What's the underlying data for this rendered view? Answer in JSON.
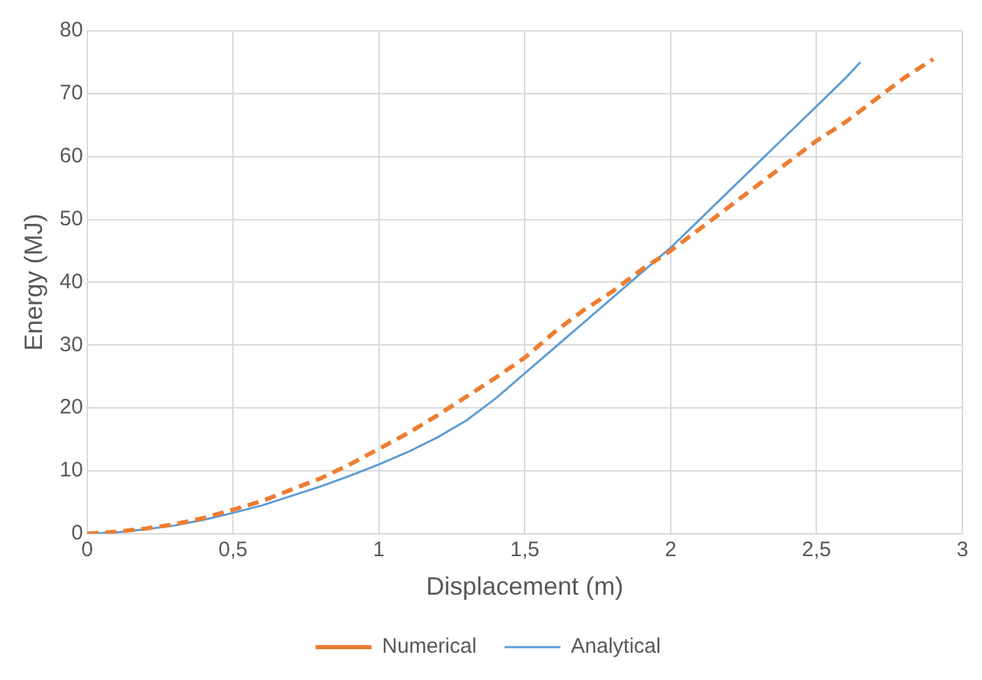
{
  "chart_data": {
    "type": "line",
    "xlabel": "Displacement (m)",
    "ylabel": "Energy (MJ)",
    "xlim": [
      0,
      3
    ],
    "xticks": [
      0,
      {
        "value": 0.5,
        "label": "0,5"
      },
      1,
      {
        "value": 1.5,
        "label": "1,5"
      },
      2,
      {
        "value": 2.5,
        "label": "2,5"
      },
      3
    ],
    "ylim": [
      0,
      80
    ],
    "yticks": [
      0,
      10,
      20,
      30,
      40,
      50,
      60,
      70,
      80
    ],
    "grid": true,
    "legend": "bottom",
    "marker": "none",
    "series": [
      {
        "name": "Numerical",
        "color": "#ed7d31",
        "line_style": "dashed",
        "x": [
          0,
          0.1,
          0.2,
          0.3,
          0.4,
          0.5,
          0.6,
          0.7,
          0.8,
          0.9,
          1,
          1.1,
          1.2,
          1.3,
          1.4,
          1.5,
          1.6,
          1.7,
          1.8,
          1.9,
          2,
          2.1,
          2.2,
          2.3,
          2.4,
          2.5,
          2.6,
          2.7,
          2.8,
          2.9
        ],
        "values": [
          0,
          0.3,
          0.8,
          1.5,
          2.5,
          3.8,
          5.2,
          7,
          8.8,
          11,
          13.5,
          16,
          18.8,
          21.8,
          24.8,
          28,
          32,
          35.5,
          38.5,
          42,
          45,
          48.5,
          52,
          55.5,
          59,
          62.5,
          65.5,
          69,
          72.5,
          75.5
        ]
      },
      {
        "name": "Analytical",
        "color": "#5b9bd5",
        "line_style": "solid",
        "x": [
          0,
          0.1,
          0.2,
          0.3,
          0.4,
          0.5,
          0.6,
          0.7,
          0.8,
          0.9,
          1,
          1.1,
          1.2,
          1.3,
          1.4,
          1.5,
          1.6,
          1.7,
          1.8,
          1.9,
          2,
          2.1,
          2.2,
          2.3,
          2.4,
          2.5,
          2.6,
          2.65
        ],
        "values": [
          0,
          0.2,
          0.7,
          1.3,
          2.2,
          3.3,
          4.5,
          6,
          7.5,
          9.2,
          11,
          13,
          15.3,
          18,
          21.5,
          25.5,
          29.5,
          33.5,
          37.5,
          41.5,
          45.5,
          50,
          54.5,
          59,
          63.5,
          68,
          72.5,
          75
        ]
      }
    ]
  }
}
